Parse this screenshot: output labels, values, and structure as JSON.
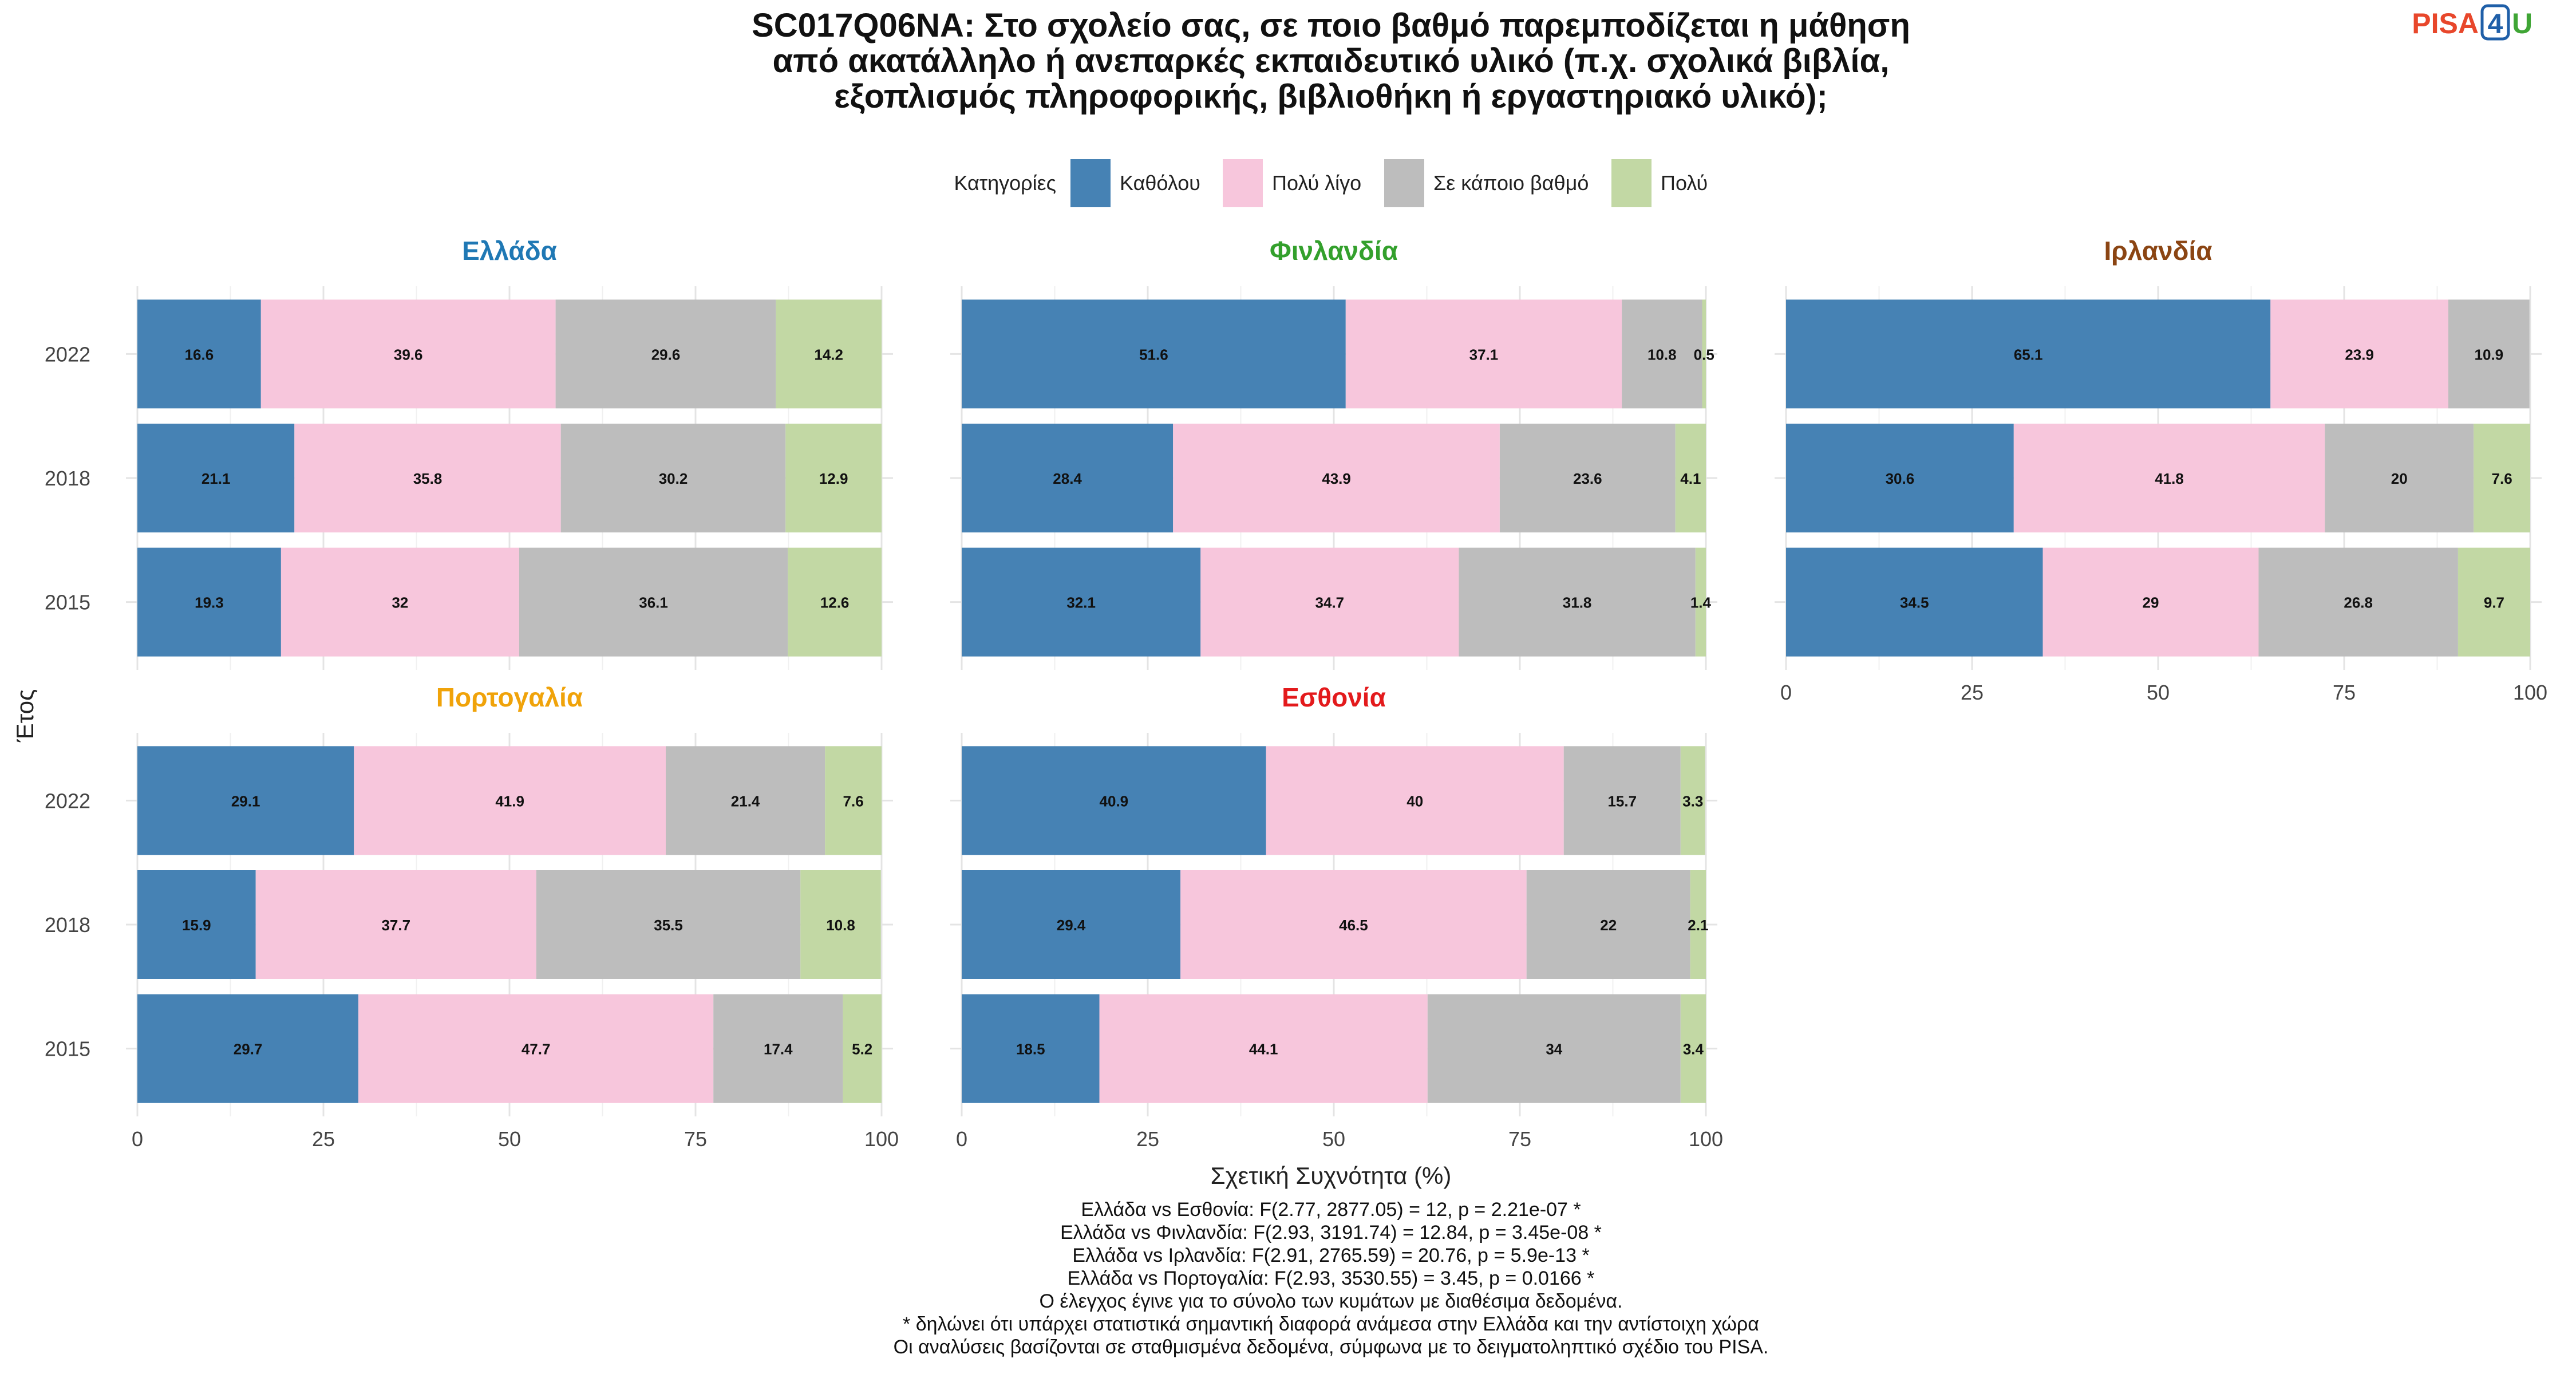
{
  "logo": {
    "text_a": "PISA",
    "text_b": "4",
    "text_c": "U",
    "color_a": "#e8472b",
    "color_b": "#1f5fa8",
    "color_c": "#3fa535"
  },
  "title_lines": [
    "SC017Q06NA: Στο σχολείο σας, σε ποιο βαθμό παρεμποδίζεται η μάθηση",
    "από ακατάλληλο ή ανεπαρκές εκπαιδευτικό υλικό (π.χ. σχολικά βιβλία,",
    "εξοπλισμός πληροφορικής, βιβλιοθήκη ή εργαστηριακό υλικό);"
  ],
  "legend": {
    "title": "Κατηγορίες",
    "items": [
      {
        "label": "Καθόλου",
        "color": "#4682b4"
      },
      {
        "label": "Πολύ λίγο",
        "color": "#f7c6dc"
      },
      {
        "label": "Σε κάποιο βαθμό",
        "color": "#bdbdbd"
      },
      {
        "label": "Πολύ",
        "color": "#c2d8a4"
      }
    ]
  },
  "axis": {
    "ylabel": "Έτος",
    "xlabel": "Σχετική Συχνότητα (%)",
    "xticks": [
      "0",
      "25",
      "50",
      "75",
      "100"
    ]
  },
  "chart_data": {
    "type": "bar",
    "orientation": "horizontal",
    "stacked": true,
    "xlim": [
      0,
      100
    ],
    "categories": [
      "2022",
      "2018",
      "2015"
    ],
    "series_names": [
      "Καθόλου",
      "Πολύ λίγο",
      "Σε κάποιο βαθμό",
      "Πολύ"
    ],
    "panels": [
      {
        "name": "Ελλάδα",
        "color": "#1f78b4",
        "values": {
          "2022": [
            16.6,
            39.6,
            29.6,
            14.2
          ],
          "2018": [
            21.1,
            35.8,
            30.2,
            12.9
          ],
          "2015": [
            19.3,
            32,
            36.1,
            12.6
          ]
        }
      },
      {
        "name": "Φινλανδία",
        "color": "#33a02c",
        "values": {
          "2022": [
            51.6,
            37.1,
            10.8,
            0.5
          ],
          "2018": [
            28.4,
            43.9,
            23.6,
            4.1
          ],
          "2015": [
            32.1,
            34.7,
            31.8,
            1.4
          ]
        }
      },
      {
        "name": "Ιρλανδία",
        "color": "#8b4513",
        "values": {
          "2022": [
            65.1,
            23.9,
            10.9,
            null
          ],
          "2018": [
            30.6,
            41.8,
            20,
            7.6
          ],
          "2015": [
            34.5,
            29,
            26.8,
            9.7
          ]
        }
      },
      {
        "name": "Πορτογαλία",
        "color": "#f0a30a",
        "values": {
          "2022": [
            29.1,
            41.9,
            21.4,
            7.6
          ],
          "2018": [
            15.9,
            37.7,
            35.5,
            10.8
          ],
          "2015": [
            29.7,
            47.7,
            17.4,
            5.2
          ]
        }
      },
      {
        "name": "Εσθονία",
        "color": "#e31a1c",
        "values": {
          "2022": [
            40.9,
            40,
            15.7,
            3.3
          ],
          "2018": [
            29.4,
            46.5,
            22,
            2.1
          ],
          "2015": [
            18.5,
            44.1,
            34,
            3.4
          ]
        }
      }
    ]
  },
  "caption_lines": [
    "Ελλάδα vs Εσθονία: F(2.77, 2877.05) = 12, p = 2.21e-07 *",
    "Ελλάδα vs Φινλανδία: F(2.93, 3191.74) = 12.84, p = 3.45e-08 *",
    "Ελλάδα vs Ιρλανδία: F(2.91, 2765.59) = 20.76, p = 5.9e-13 *",
    "Ελλάδα vs Πορτογαλία: F(2.93, 3530.55) = 3.45, p = 0.0166 *",
    "Ο έλεγχος έγινε για το σύνολο των κυμάτων με διαθέσιμα δεδομένα.",
    "* δηλώνει ότι υπάρχει στατιστικά σημαντική διαφορά ανάμεσα στην Ελλάδα και την αντίστοιχη χώρα",
    "Οι αναλύσεις βασίζονται σε σταθμισμένα δεδομένα, σύμφωνα με το δειγματοληπτικό σχέδιο του PISA."
  ]
}
